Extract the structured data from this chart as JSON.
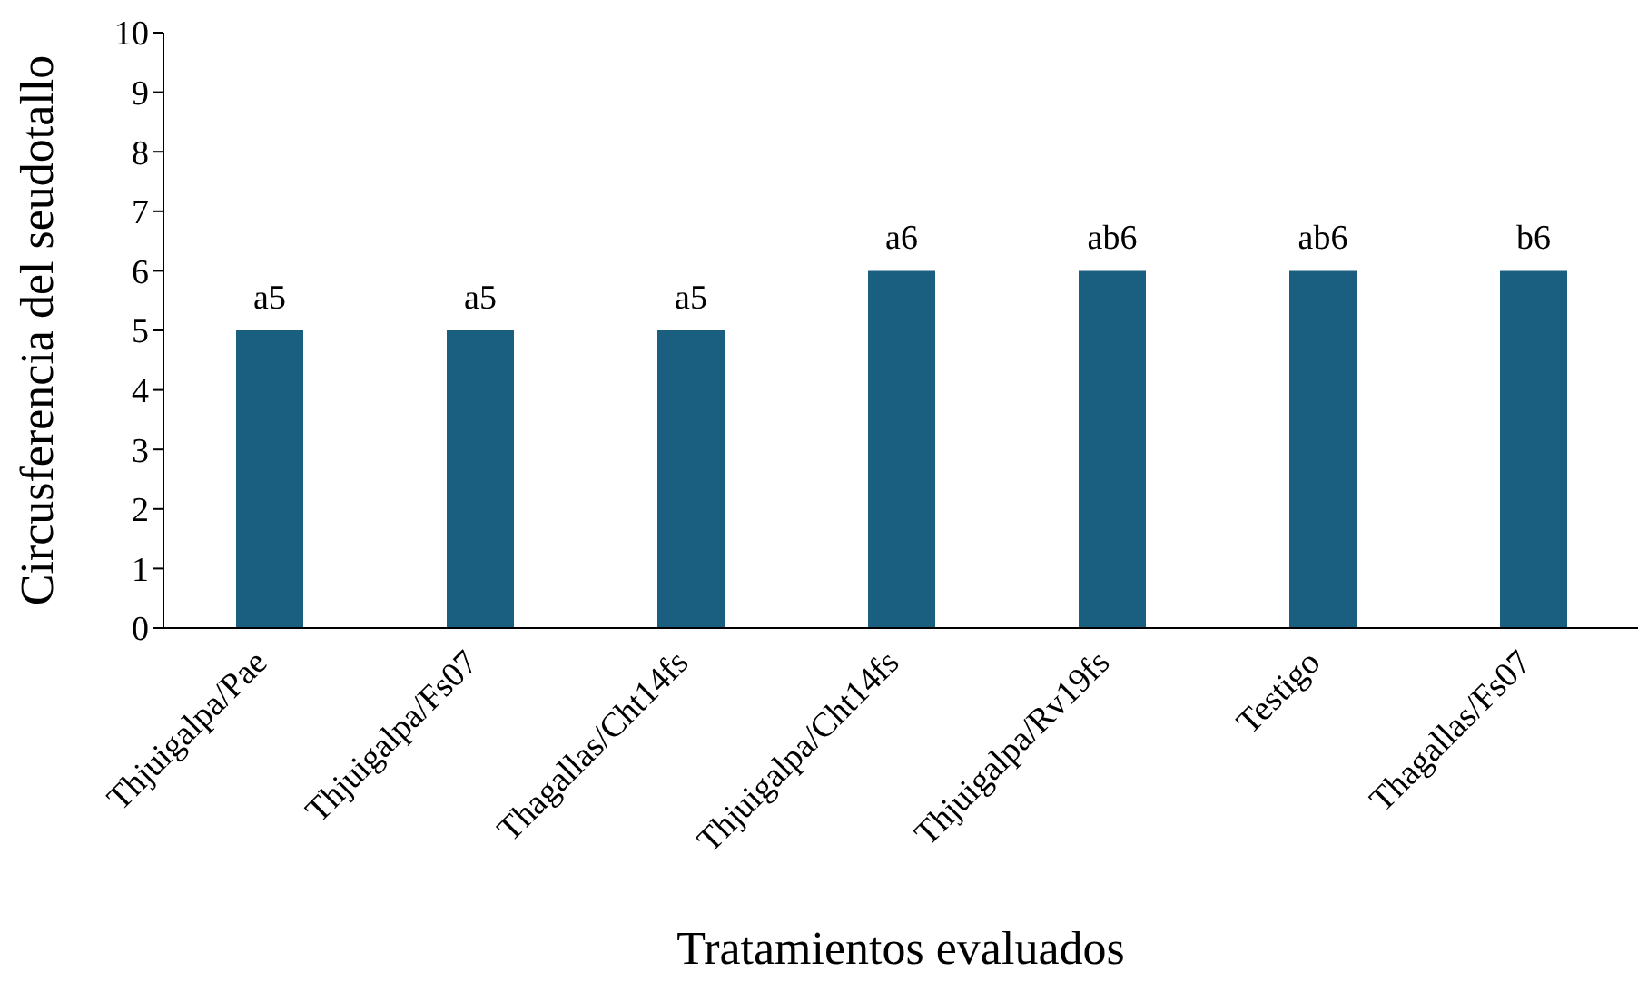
{
  "chart_data": {
    "type": "bar",
    "xlabel": "Tratamientos evaluados",
    "ylabel": "Circusferencia del seudotallo",
    "categories": [
      "Thjuigalpa/Pae",
      "Thjuigalpa/Fs07",
      "Thagallas/Cht14fs",
      "Thjuigalpa/Cht14fs",
      "Thjuigalpa/Rv19fs",
      "Testigo",
      "Thagallas/Fs07"
    ],
    "values": [
      5,
      5,
      5,
      6,
      6,
      6,
      6
    ],
    "value_labels": [
      "a5",
      "a5",
      "a5",
      "a6",
      "ab6",
      "ab6",
      "b6"
    ],
    "color": "#1a5f80",
    "ylim": [
      0,
      10
    ],
    "yticks": [
      0,
      1,
      2,
      3,
      4,
      5,
      6,
      7,
      8,
      9,
      10
    ],
    "grid": false,
    "legend": false
  }
}
